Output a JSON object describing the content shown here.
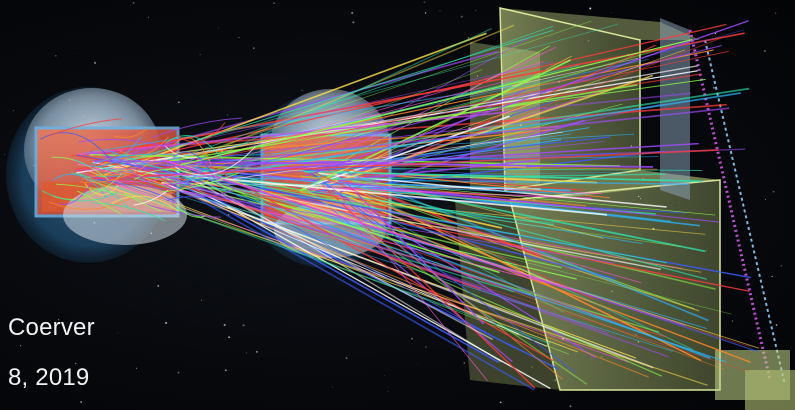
{
  "caption": {
    "author": "Coerver",
    "date": "8, 2019"
  },
  "palette": {
    "background": "#05070b",
    "detector_blue": "#3f8ec8",
    "module_red": "#d8493a",
    "frame_yellow": "#c9d98a",
    "track_colors": [
      "#ff3b3b",
      "#ff8a2a",
      "#ffe14a",
      "#8cff4a",
      "#2ee6b0",
      "#2ab8ff",
      "#3a5cff",
      "#a14bff",
      "#ff4fd8",
      "#ffffff"
    ]
  },
  "scene_objects": {
    "left_detector": "left-pixel-detector",
    "middle_detector": "middle-pixel-detector",
    "right_detector": "tracking-station-frame"
  }
}
